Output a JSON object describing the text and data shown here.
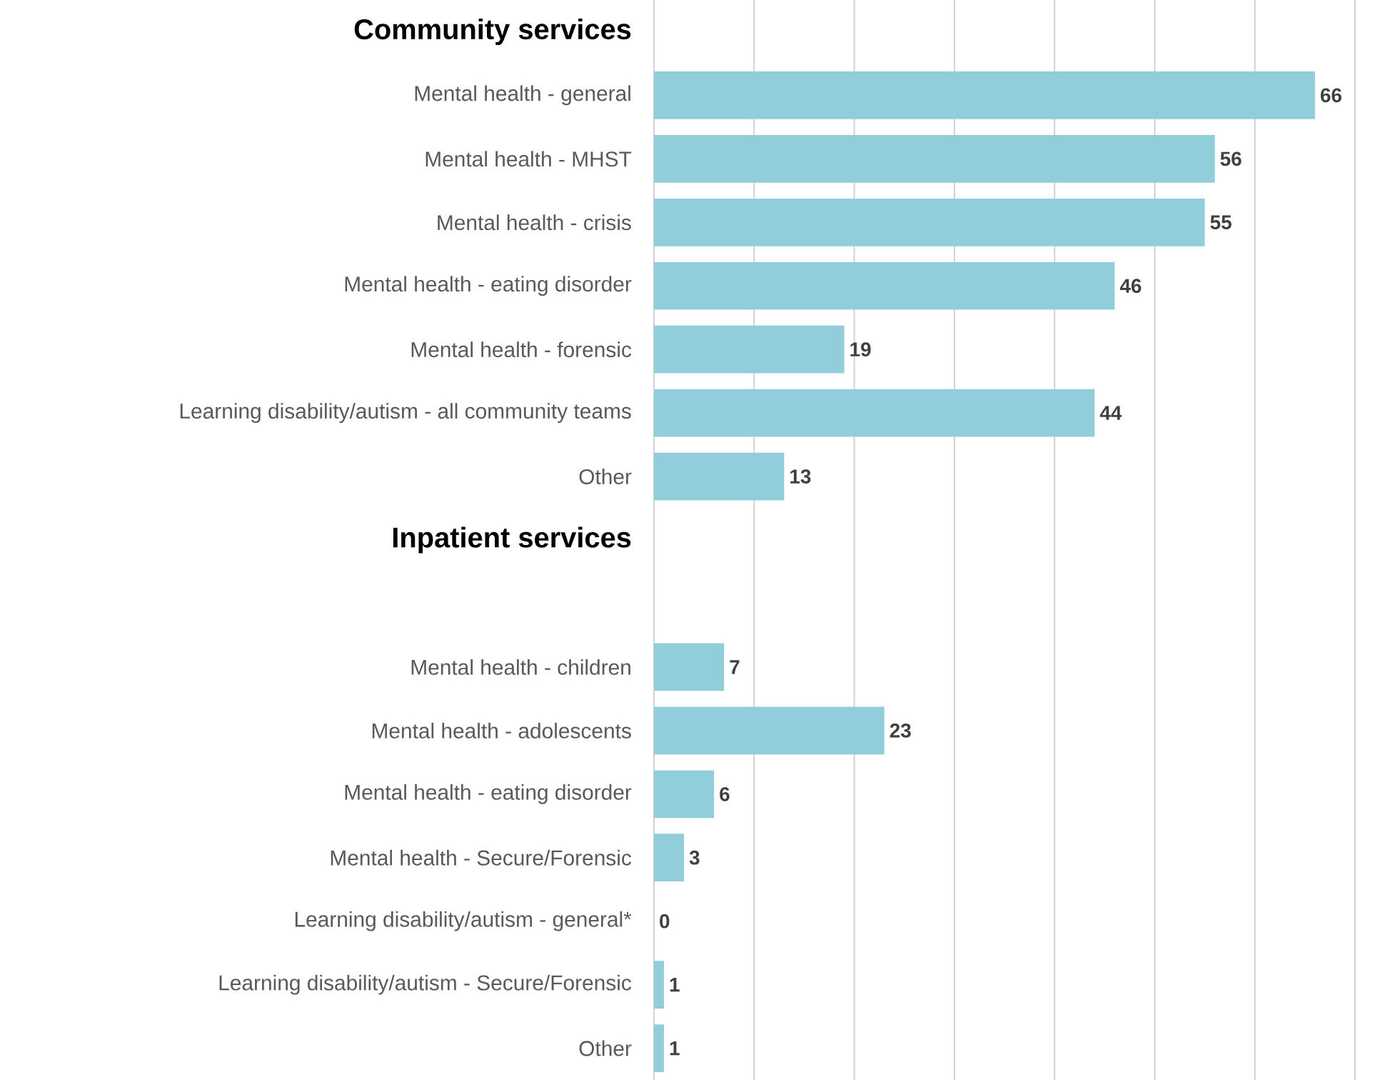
{
  "chart_data": {
    "type": "bar",
    "orientation": "horizontal",
    "categories": [
      "Community services",
      "Mental health - general",
      "Mental health - MHST",
      "Mental health - crisis",
      "Mental health - eating disorder",
      "Mental health - forensic",
      "Learning disability/autism - all community teams",
      "Other",
      "Inpatient services",
      null,
      "Mental health - children",
      "Mental health - adolescents",
      "Mental health - eating disorder",
      "Mental health - Secure/Forensic",
      "Learning disability/autism - general*",
      "Learning disability/autism - Secure/Forensic",
      "Other"
    ],
    "values": [
      null,
      66,
      56,
      55,
      46,
      19,
      44,
      13,
      null,
      null,
      7,
      23,
      6,
      3,
      0,
      1,
      1
    ],
    "color": "#92cddc",
    "data_labels": true,
    "xlim": [
      0,
      70
    ],
    "xticks": [
      {
        "value": 0,
        "label": null
      },
      {
        "value": 10,
        "label": null
      },
      {
        "value": 20,
        "label": null
      },
      {
        "value": 30,
        "label": null
      },
      {
        "value": 40,
        "label": null
      },
      {
        "value": 50,
        "label": null
      },
      {
        "value": 60,
        "label": null
      },
      {
        "value": 70,
        "label": null
      }
    ],
    "grid": "x",
    "tick_labels": "y"
  }
}
